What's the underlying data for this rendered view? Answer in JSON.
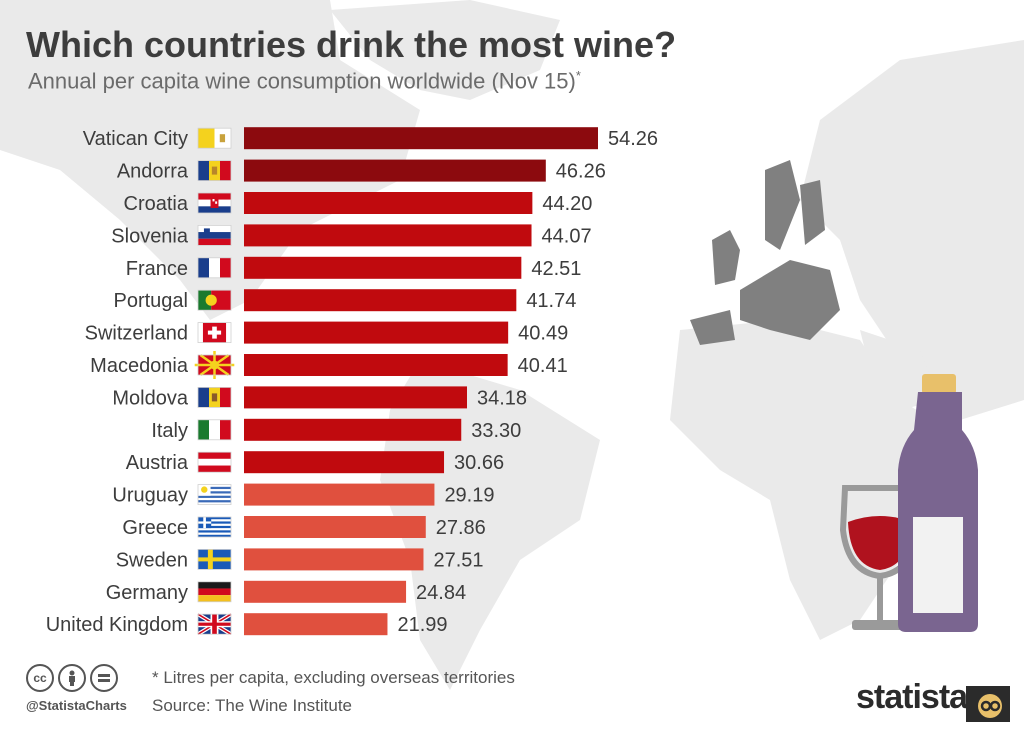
{
  "title": "Which countries drink the most wine?",
  "subtitle": "Annual per capita wine consumption worldwide (Nov 15)",
  "subtitle_mark": "*",
  "footer": {
    "note": "* Litres per capita, excluding overseas territories",
    "source": "Source: The Wine Institute",
    "handle": "@StatistaCharts",
    "brand": "statista"
  },
  "colors": {
    "dark_red": "#8c0a0e",
    "red": "#c00a0e",
    "light_red": "#e0503e",
    "map_gray": "#eaeaea",
    "europe_gray": "#808080",
    "bottle": "#7a6590",
    "cork": "#e8c06a",
    "glass": "#9a9a9a",
    "wine": "#b0121e"
  },
  "chart_data": {
    "type": "bar",
    "orientation": "horizontal",
    "categories": [
      "Vatican City",
      "Andorra",
      "Croatia",
      "Slovenia",
      "France",
      "Portugal",
      "Switzerland",
      "Macedonia",
      "Moldova",
      "Italy",
      "Austria",
      "Uruguay",
      "Greece",
      "Sweden",
      "Germany",
      "United Kingdom"
    ],
    "values": [
      54.26,
      46.26,
      44.2,
      44.07,
      42.51,
      41.74,
      40.49,
      40.41,
      34.18,
      33.3,
      30.66,
      29.19,
      27.86,
      27.51,
      24.84,
      21.99
    ],
    "value_labels": [
      "54.26",
      "46.26",
      "44.20",
      "44.07",
      "42.51",
      "41.74",
      "40.49",
      "40.41",
      "34.18",
      "33.30",
      "30.66",
      "29.19",
      "27.86",
      "27.51",
      "24.84",
      "21.99"
    ],
    "color_groups": [
      "dark_red",
      "dark_red",
      "red",
      "red",
      "red",
      "red",
      "red",
      "red",
      "red",
      "red",
      "red",
      "light_red",
      "light_red",
      "light_red",
      "light_red",
      "light_red"
    ],
    "flag_icons": [
      "vatican-flag-icon",
      "andorra-flag-icon",
      "croatia-flag-icon",
      "slovenia-flag-icon",
      "france-flag-icon",
      "portugal-flag-icon",
      "switzerland-flag-icon",
      "macedonia-flag-icon",
      "moldova-flag-icon",
      "italy-flag-icon",
      "austria-flag-icon",
      "uruguay-flag-icon",
      "greece-flag-icon",
      "sweden-flag-icon",
      "germany-flag-icon",
      "uk-flag-icon"
    ],
    "xlim": [
      0,
      54.26
    ],
    "grid": false,
    "legend": "none"
  }
}
